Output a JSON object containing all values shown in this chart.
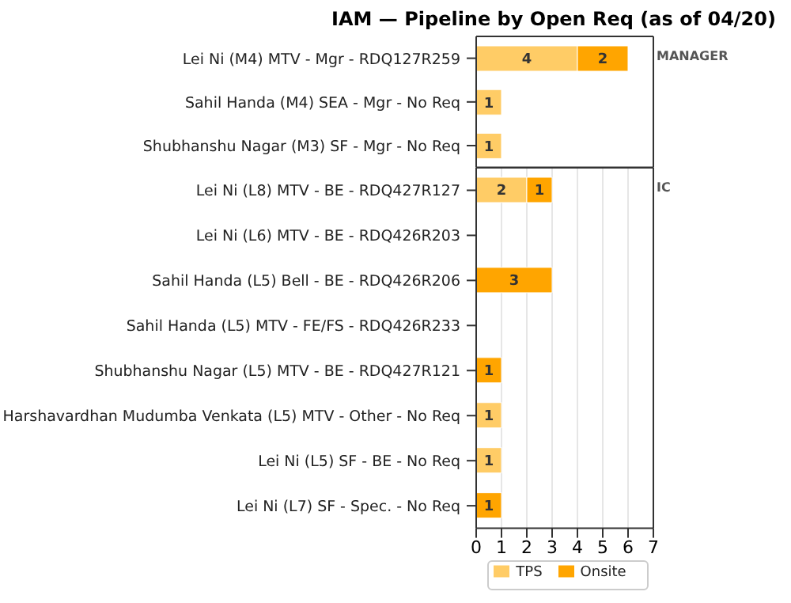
{
  "chart_data": [
    {
      "type": "bar",
      "orientation": "horizontal",
      "stacked": true,
      "title": "IAM — Pipeline by Open Req (as of 04/20)",
      "categories": [
        "Lei Ni (M4) MTV - Mgr - RDQ127R259",
        "Sahil Handa (M4) SEA - Mgr - No Req",
        "Shubhanshu Nagar (M3) SF - Mgr - No Req"
      ],
      "series": [
        {
          "color": "#ffcc66",
          "values": [
            4,
            1,
            1
          ]
        },
        {
          "color": "#ffa500",
          "values": [
            2,
            null,
            null
          ]
        }
      ],
      "xlim": [
        0,
        7
      ],
      "xticks": [
        0,
        1,
        2,
        3,
        4,
        5,
        6,
        7
      ],
      "tick_labels": "y",
      "grid": "x",
      "data_labels": true,
      "annotations": [
        "MANAGER"
      ]
    },
    {
      "type": "bar",
      "orientation": "horizontal",
      "stacked": true,
      "categories": [
        "Lei Ni (L8) MTV - BE - RDQ427R127",
        "Lei Ni (L6) MTV - BE - RDQ426R203",
        "Sahil Handa (L5) Bell - BE - RDQ426R206",
        "Sahil Handa (L5) MTV - FE/FS - RDQ426R233",
        "Shubhanshu Nagar (L5) MTV - BE - RDQ427R121",
        "Harshavardhan Mudumba Venkata (L5) MTV - Other - No Req",
        "Lei Ni (L5) SF - BE - No Req",
        "Lei Ni (L7) SF - Spec. - No Req"
      ],
      "series": [
        {
          "name": "TPS",
          "color": "#ffcc66",
          "values": [
            2,
            null,
            null,
            null,
            null,
            1,
            1,
            null
          ]
        },
        {
          "name": "Onsite",
          "color": "#ffa500",
          "values": [
            1,
            null,
            3,
            null,
            1,
            null,
            null,
            1
          ]
        }
      ],
      "xlim": [
        0,
        7
      ],
      "xticks": [
        0,
        1,
        2,
        3,
        4,
        5,
        6,
        7
      ],
      "grid": "x",
      "legend": "bottom",
      "data_labels": true,
      "annotations": [
        "IC"
      ]
    }
  ]
}
